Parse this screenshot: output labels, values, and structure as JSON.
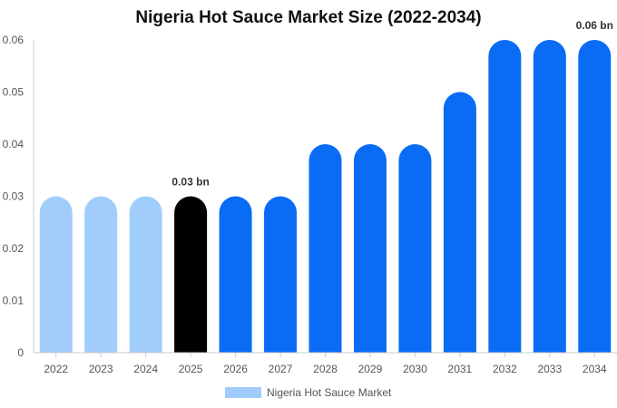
{
  "chart_data": {
    "type": "bar",
    "title": "Nigeria Hot Sauce Market Size (2022-2034)",
    "xlabel": "",
    "ylabel": "",
    "categories": [
      "2022",
      "2023",
      "2024",
      "2025",
      "2026",
      "2027",
      "2028",
      "2029",
      "2030",
      "2031",
      "2032",
      "2033",
      "2034"
    ],
    "series": [
      {
        "name": "Nigeria Hot Sauce Market",
        "values": [
          0.03,
          0.03,
          0.03,
          0.03,
          0.03,
          0.03,
          0.04,
          0.04,
          0.04,
          0.05,
          0.06,
          0.06,
          0.06
        ]
      }
    ],
    "ylim": [
      0,
      0.06
    ],
    "yticks": [
      "0",
      "0.01",
      "0.02",
      "0.03",
      "0.04",
      "0.05",
      "0.06"
    ],
    "data_labels": [
      {
        "category": "2025",
        "text": "0.03 bn"
      },
      {
        "category": "2034",
        "text": "0.06 bn"
      }
    ],
    "highlight_category": "2025",
    "legend_position": "bottom",
    "grid": false,
    "colors": {
      "historic": "#a0cdfc",
      "current": "#000000",
      "forecast": "#0a6cf5",
      "axis": "#cccccc"
    }
  }
}
